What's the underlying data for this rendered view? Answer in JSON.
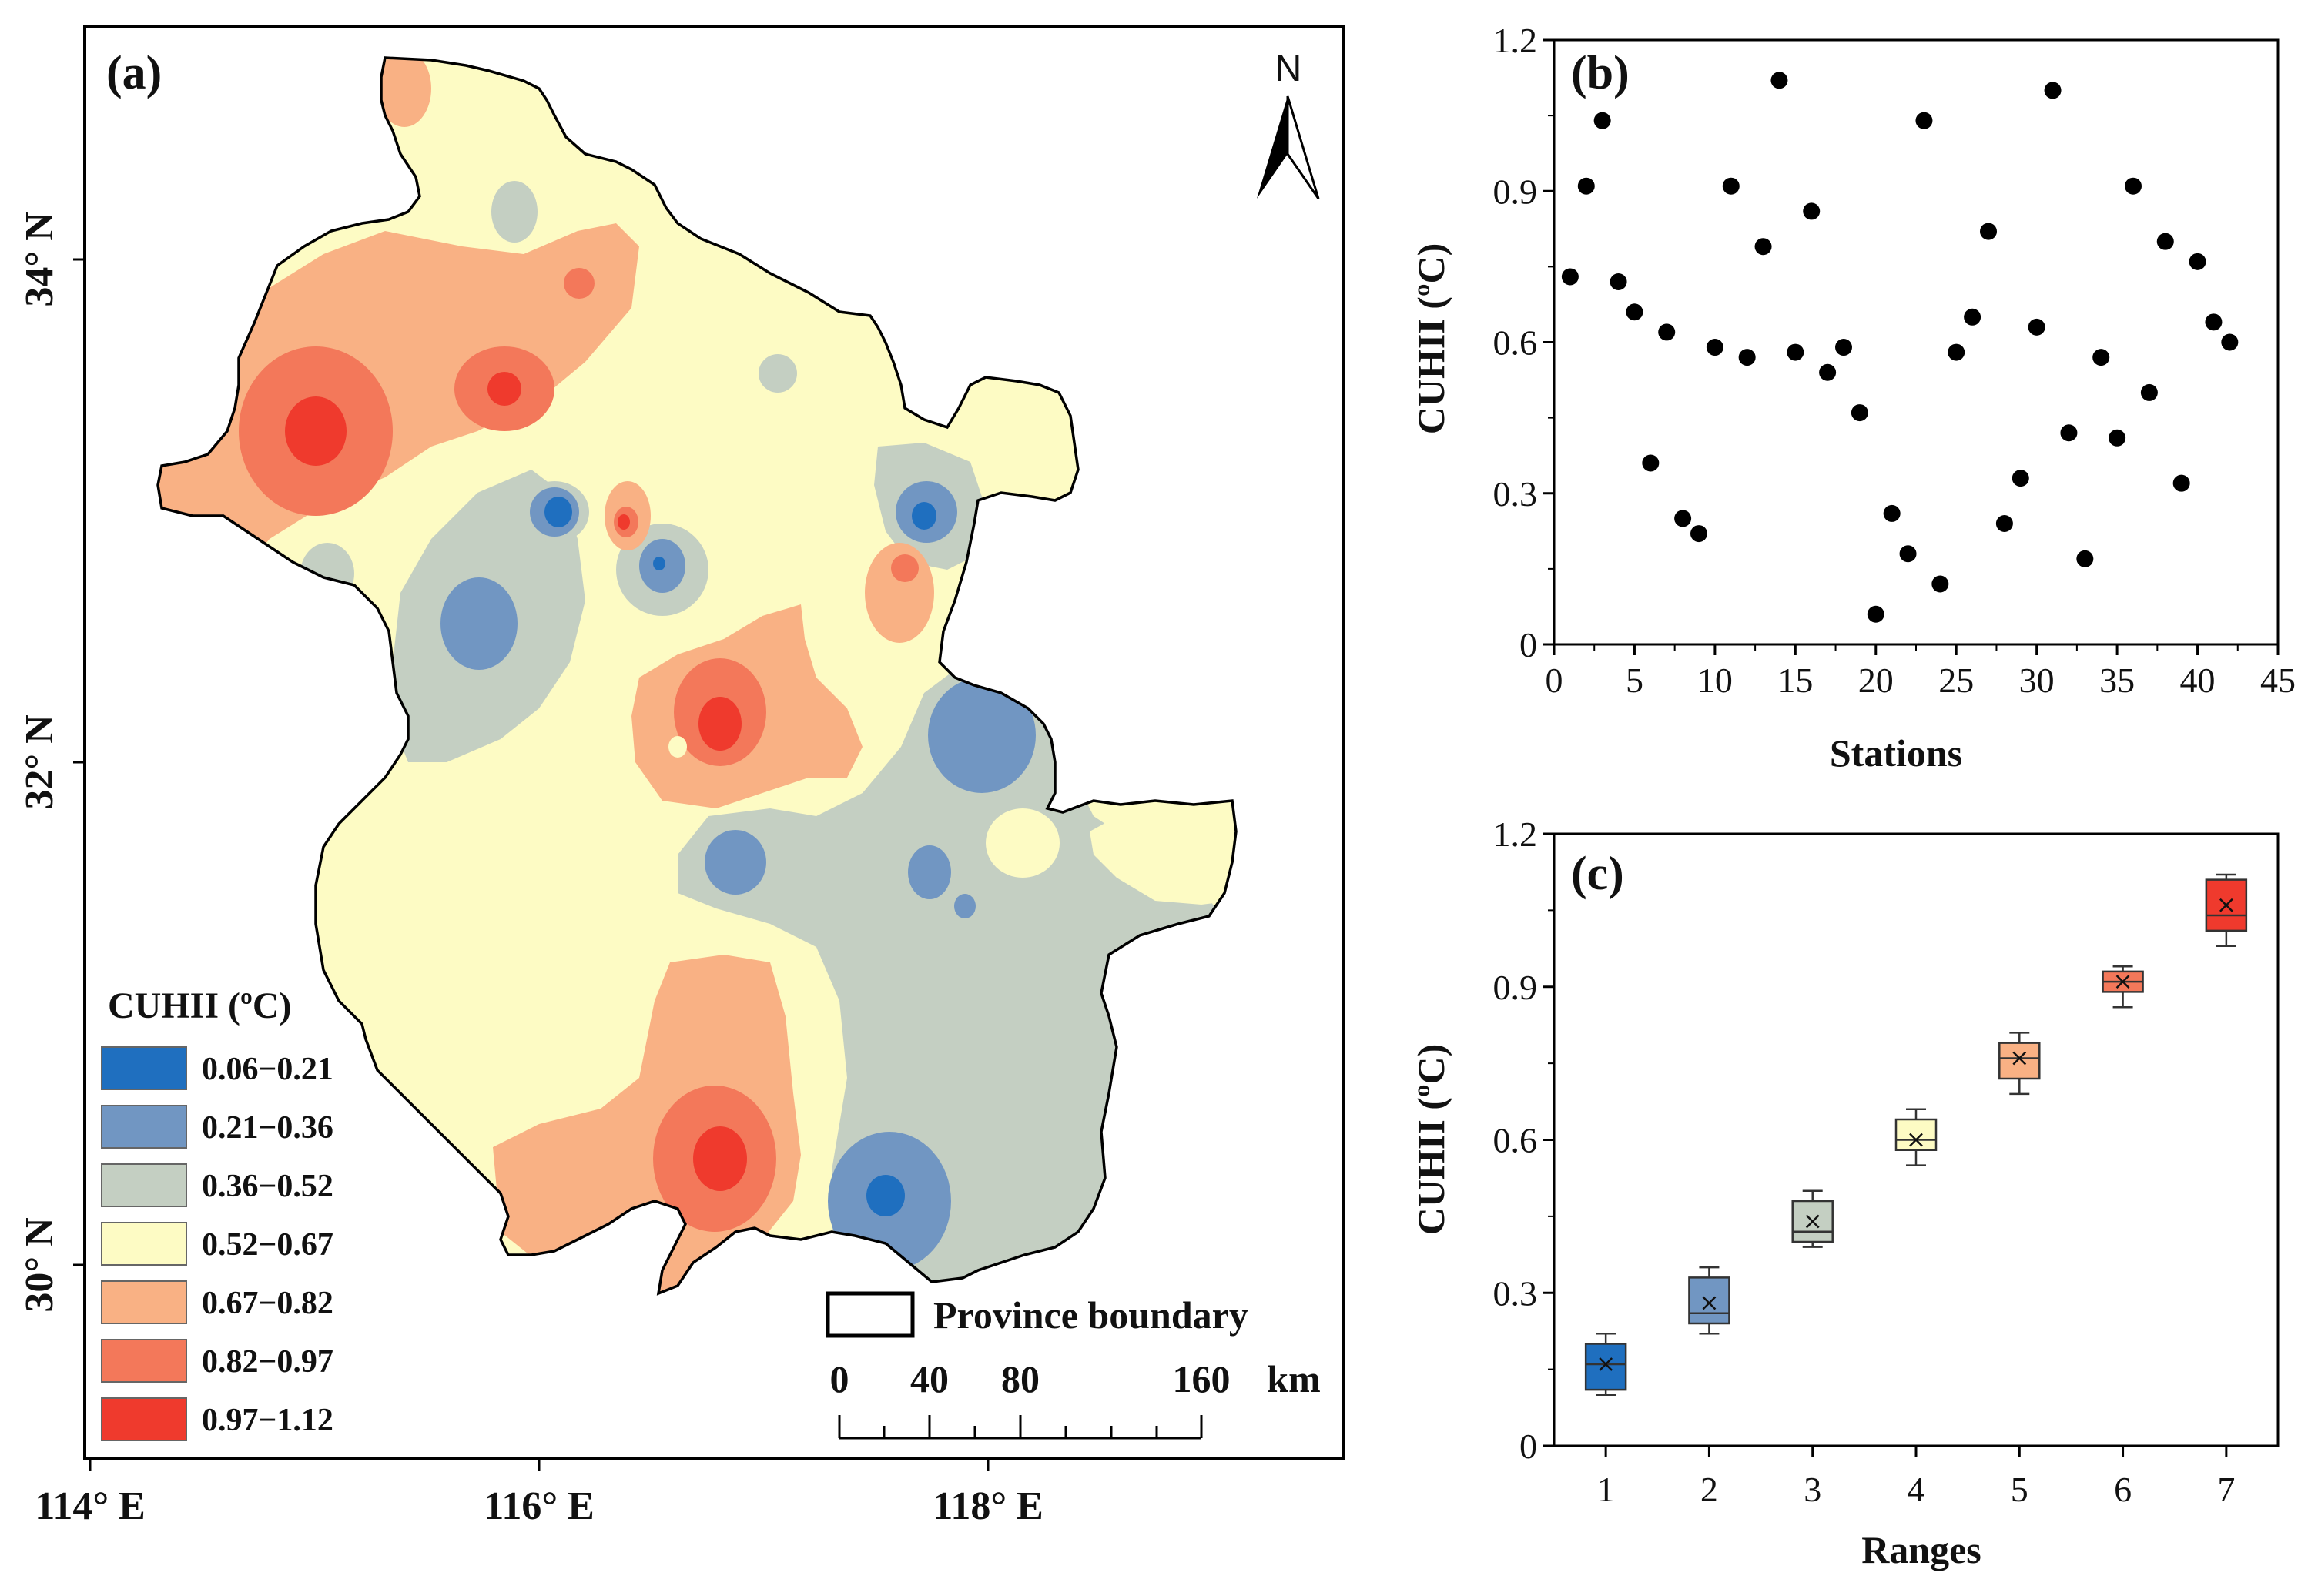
{
  "colors": {
    "r1": "#1f6fbf",
    "r2": "#7196c2",
    "r3": "#c4cfc2",
    "r4": "#fdfbc4",
    "r5": "#f9b184",
    "r6": "#f3785a",
    "r7": "#ef3a2d"
  },
  "panel_a": {
    "label": "(a)",
    "north": "N",
    "lon_labels": [
      "114° E",
      "116° E",
      "118° E"
    ],
    "lat_labels": [
      "34° N",
      "32° N",
      "30° N"
    ],
    "legend_title": "CUHII (ºC)",
    "legend_items": [
      {
        "label": "0.06−0.21",
        "color": "#1f6fbf"
      },
      {
        "label": "0.21−0.36",
        "color": "#7196c2"
      },
      {
        "label": "0.36−0.52",
        "color": "#c4cfc2"
      },
      {
        "label": "0.52−0.67",
        "color": "#fdfbc4"
      },
      {
        "label": "0.67−0.82",
        "color": "#f9b184"
      },
      {
        "label": "0.82−0.97",
        "color": "#f3785a"
      },
      {
        "label": "0.97−1.12",
        "color": "#ef3a2d"
      }
    ],
    "boundary_label": "Province boundary",
    "scale_labels": [
      "0",
      "40",
      "80",
      "160"
    ],
    "scale_unit": "km"
  },
  "chart_data": [
    {
      "panel": "(b)",
      "type": "scatter",
      "xlabel": "Stations",
      "ylabel": "CUHII (ºC)",
      "xlim": [
        0,
        45
      ],
      "ylim": [
        0,
        1.2
      ],
      "xticks": [
        "0",
        "5",
        "10",
        "15",
        "20",
        "25",
        "30",
        "35",
        "40",
        "45"
      ],
      "yticks": [
        "0",
        "0.3",
        "0.6",
        "0.9",
        "1.2"
      ],
      "x": [
        1,
        2,
        3,
        4,
        5,
        6,
        7,
        8,
        9,
        10,
        11,
        12,
        13,
        14,
        15,
        16,
        17,
        18,
        19,
        20,
        21,
        22,
        23,
        24,
        25,
        26,
        27,
        28,
        29,
        30,
        31,
        32,
        33,
        34,
        35,
        36,
        37,
        38,
        39,
        40,
        41,
        42
      ],
      "y": [
        0.73,
        0.91,
        1.04,
        0.72,
        0.66,
        0.36,
        0.62,
        0.25,
        0.22,
        0.59,
        0.91,
        0.57,
        0.79,
        1.12,
        0.58,
        0.86,
        0.54,
        0.59,
        0.46,
        0.06,
        0.26,
        0.18,
        1.04,
        0.12,
        0.58,
        0.65,
        0.82,
        0.24,
        0.33,
        0.63,
        1.1,
        0.42,
        0.17,
        0.57,
        0.41,
        0.91,
        0.5,
        0.8,
        0.32,
        0.76,
        0.64,
        0.6
      ]
    },
    {
      "panel": "(c)",
      "type": "box",
      "xlabel": "Ranges",
      "ylabel": "CUHII (ºC)",
      "ylim": [
        0,
        1.2
      ],
      "yticks": [
        "0",
        "0.3",
        "0.6",
        "0.9",
        "1.2"
      ],
      "categories": [
        "1",
        "2",
        "3",
        "4",
        "5",
        "6",
        "7"
      ],
      "boxes": [
        {
          "min": 0.1,
          "q1": 0.11,
          "median": 0.16,
          "q3": 0.2,
          "max": 0.22,
          "mean": 0.16
        },
        {
          "min": 0.22,
          "q1": 0.24,
          "median": 0.26,
          "q3": 0.33,
          "max": 0.35,
          "mean": 0.28
        },
        {
          "min": 0.39,
          "q1": 0.4,
          "median": 0.42,
          "q3": 0.48,
          "max": 0.5,
          "mean": 0.44
        },
        {
          "min": 0.55,
          "q1": 0.58,
          "median": 0.6,
          "q3": 0.64,
          "max": 0.66,
          "mean": 0.6
        },
        {
          "min": 0.69,
          "q1": 0.72,
          "median": 0.76,
          "q3": 0.79,
          "max": 0.81,
          "mean": 0.76
        },
        {
          "min": 0.86,
          "q1": 0.89,
          "median": 0.91,
          "q3": 0.93,
          "max": 0.94,
          "mean": 0.91
        },
        {
          "min": 0.98,
          "q1": 1.01,
          "median": 1.04,
          "q3": 1.11,
          "max": 1.12,
          "mean": 1.06
        }
      ]
    }
  ]
}
